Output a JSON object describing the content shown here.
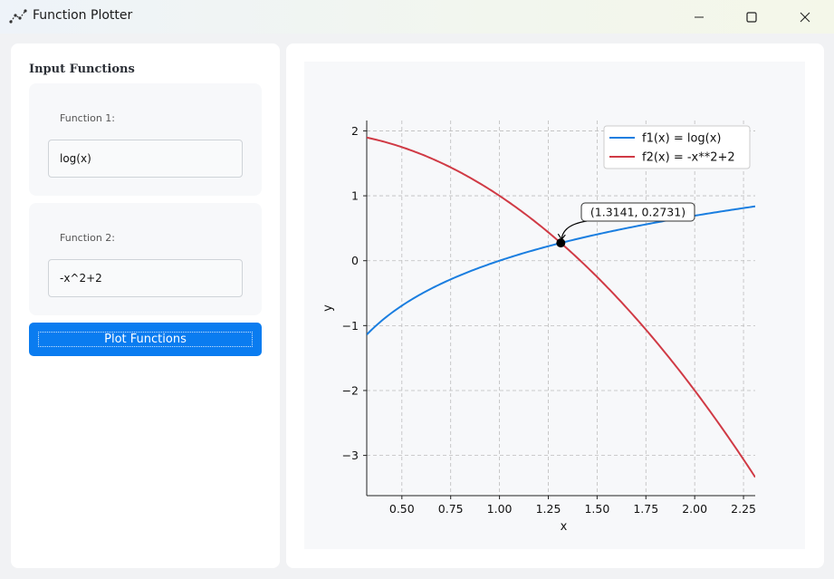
{
  "window": {
    "title": "Function Plotter",
    "app_icon": "scatter-plot-icon",
    "controls": [
      "minimize-icon",
      "maximize-icon",
      "close-icon"
    ]
  },
  "sidebar": {
    "heading": "Input Functions",
    "functions": [
      {
        "label": "Function 1:",
        "value": "log(x)"
      },
      {
        "label": "Function 2:",
        "value": "-x^2+2"
      }
    ],
    "plot_button": "Plot Functions"
  },
  "colors": {
    "accent": "#0a7cf0",
    "f1": "#1a7ee0",
    "f2": "#d03a45"
  },
  "chart_data": {
    "type": "line",
    "xlabel": "x",
    "ylabel": "y",
    "xlim": [
      0.32,
      2.31
    ],
    "ylim": [
      -3.62,
      2.16
    ],
    "xticks": [
      0.5,
      0.75,
      1.0,
      1.25,
      1.5,
      1.75,
      2.0,
      2.25
    ],
    "xtick_labels": [
      "0.50",
      "0.75",
      "1.00",
      "1.25",
      "1.50",
      "1.75",
      "2.00",
      "2.25"
    ],
    "yticks": [
      -3,
      -2,
      -1,
      0,
      1,
      2
    ],
    "ytick_labels": [
      "−3",
      "−2",
      "−1",
      "0",
      "1",
      "2"
    ],
    "grid": true,
    "legend_position": "top-right",
    "series": [
      {
        "name": "f1(x) = log(x)",
        "expr": "log",
        "color": "#1a7ee0"
      },
      {
        "name": "f2(x) = -x**2+2",
        "expr": "neg_sq_plus_2",
        "color": "#d03a45"
      }
    ],
    "intersection": {
      "x": 1.3141,
      "y": 0.2731,
      "label": "(1.3141, 0.2731)"
    }
  }
}
